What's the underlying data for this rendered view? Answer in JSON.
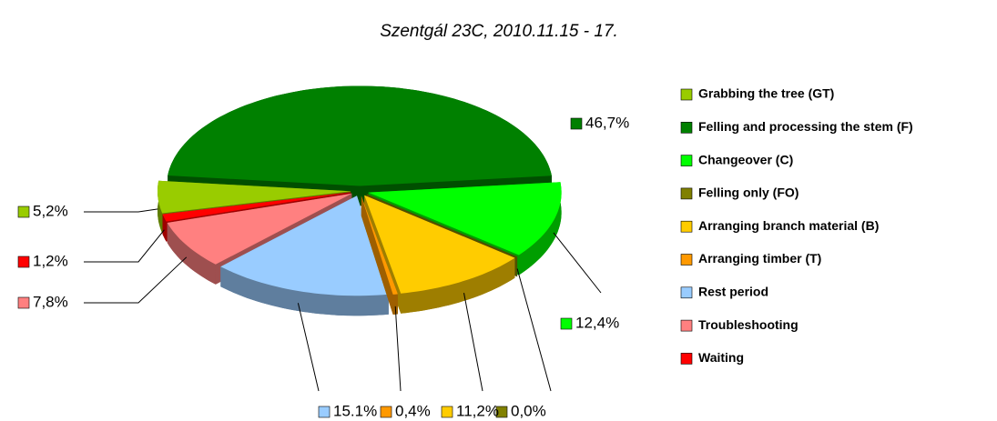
{
  "chart_data": {
    "type": "pie",
    "title": "Szentgál 23C, 2010.11.15 - 17.",
    "categories": [
      "Grabbing the tree (GT)",
      "Felling and processing the stem (F)",
      "Changeover (C)",
      "Felling only (FO)",
      "Arranging branch material (B)",
      "Arranging timber (T)",
      "Rest period",
      "Troubleshooting",
      "Waiting"
    ],
    "values": [
      5.2,
      46.7,
      12.4,
      0.0,
      11.2,
      0.4,
      15.1,
      7.8,
      1.2
    ],
    "value_labels": [
      "5,2%",
      "46,7%",
      "12,4%",
      "0,0%",
      "11,2%",
      "0,4%",
      "15.1%",
      "7,8%",
      "1,2%"
    ],
    "colors": [
      "#99cc00",
      "#008000",
      "#00ff00",
      "#808000",
      "#ffcc00",
      "#ff9900",
      "#99ccff",
      "#ff8080",
      "#ff0000"
    ],
    "legend": "right"
  }
}
